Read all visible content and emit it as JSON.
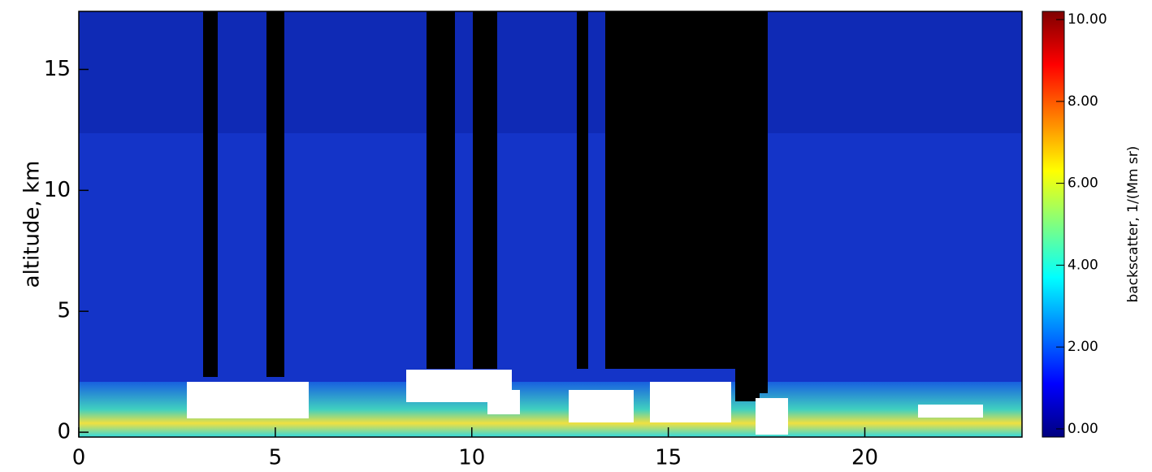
{
  "chart_data": {
    "type": "heatmap",
    "ylabel": "altitude, km",
    "colorbar_label": "backscatter, 1/(Mm sr)",
    "xlim": [
      0,
      24
    ],
    "xticks": [
      0,
      5,
      10,
      15,
      20
    ],
    "ylim": [
      -0.2,
      17.4
    ],
    "yticks": [
      0,
      5,
      10,
      15
    ],
    "clim": [
      -0.2,
      10.2
    ],
    "cticks": [
      {
        "value": 0,
        "label": "0.00"
      },
      {
        "value": 2,
        "label": "2.00"
      },
      {
        "value": 4,
        "label": "4.00"
      },
      {
        "value": 6,
        "label": "6.00"
      },
      {
        "value": 8,
        "label": "8.00"
      },
      {
        "value": 10,
        "label": "10.00"
      }
    ],
    "colormap": [
      "#00007f",
      "#0000ff",
      "#0080ff",
      "#00ffff",
      "#80ff80",
      "#ffff00",
      "#ff8000",
      "#ff0000",
      "#7f0000"
    ]
  }
}
